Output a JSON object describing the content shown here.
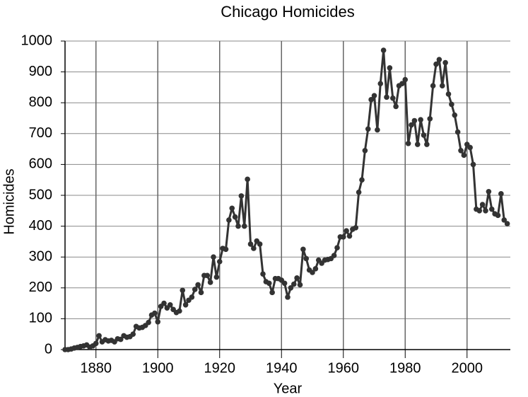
{
  "chart_data": {
    "type": "line",
    "title": "Chicago Homicides",
    "x_label": "Year",
    "y_label": "Homicides",
    "x": [
      1870,
      1871,
      1872,
      1873,
      1874,
      1875,
      1876,
      1877,
      1878,
      1879,
      1880,
      1881,
      1882,
      1883,
      1884,
      1885,
      1886,
      1887,
      1888,
      1889,
      1890,
      1891,
      1892,
      1893,
      1894,
      1895,
      1896,
      1897,
      1898,
      1899,
      1900,
      1901,
      1902,
      1903,
      1904,
      1905,
      1906,
      1907,
      1908,
      1909,
      1910,
      1911,
      1912,
      1913,
      1914,
      1915,
      1916,
      1917,
      1918,
      1919,
      1920,
      1921,
      1922,
      1923,
      1924,
      1925,
      1926,
      1927,
      1928,
      1929,
      1930,
      1931,
      1932,
      1933,
      1934,
      1935,
      1936,
      1937,
      1938,
      1939,
      1940,
      1941,
      1942,
      1943,
      1944,
      1945,
      1946,
      1947,
      1948,
      1949,
      1950,
      1951,
      1952,
      1953,
      1954,
      1955,
      1956,
      1957,
      1958,
      1959,
      1960,
      1961,
      1962,
      1963,
      1964,
      1965,
      1966,
      1967,
      1968,
      1969,
      1970,
      1971,
      1972,
      1973,
      1974,
      1975,
      1976,
      1977,
      1978,
      1979,
      1980,
      1981,
      1982,
      1983,
      1984,
      1985,
      1986,
      1987,
      1988,
      1989,
      1990,
      1991,
      1992,
      1993,
      1994,
      1995,
      1996,
      1997,
      1998,
      1999,
      2000,
      2001,
      2002,
      2003,
      2004,
      2005,
      2006,
      2007,
      2008,
      2009,
      2010,
      2011,
      2012,
      2013
    ],
    "series": [
      {
        "color": "#333333",
        "values": [
          0,
          0,
          2,
          5,
          7,
          10,
          12,
          15,
          8,
          12,
          20,
          45,
          25,
          32,
          28,
          30,
          25,
          35,
          33,
          45,
          40,
          42,
          50,
          75,
          70,
          72,
          78,
          88,
          112,
          118,
          90,
          140,
          150,
          135,
          145,
          130,
          120,
          125,
          192,
          145,
          160,
          170,
          195,
          210,
          185,
          240,
          240,
          218,
          300,
          235,
          285,
          328,
          325,
          420,
          458,
          430,
          400,
          498,
          400,
          552,
          342,
          328,
          352,
          342,
          245,
          220,
          215,
          185,
          230,
          230,
          225,
          215,
          170,
          200,
          212,
          232,
          210,
          325,
          295,
          258,
          250,
          262,
          290,
          280,
          290,
          292,
          295,
          305,
          330,
          365,
          365,
          385,
          368,
          390,
          395,
          510,
          550,
          645,
          715,
          810,
          823,
          712,
          862,
          970,
          818,
          913,
          815,
          788,
          855,
          862,
          875,
          668,
          728,
          742,
          665,
          745,
          695,
          665,
          748,
          855,
          925,
          940,
          855,
          930,
          828,
          795,
          760,
          705,
          645,
          630,
          665,
          655,
          600,
          455,
          450,
          470,
          450,
          512,
          455,
          440,
          435,
          505,
          420,
          408
        ]
      }
    ],
    "xlim": [
      1870,
      2014
    ],
    "ylim": [
      0,
      1000
    ],
    "xticks": [
      1880,
      1900,
      1920,
      1940,
      1960,
      1980,
      2000
    ],
    "yticks": [
      0,
      100,
      200,
      300,
      400,
      500,
      600,
      700,
      800,
      900,
      1000
    ],
    "grid": true
  }
}
